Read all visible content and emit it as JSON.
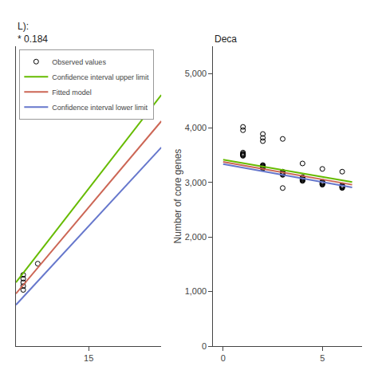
{
  "chart_data": [
    {
      "type": "line",
      "title": "L):\n* 0.184",
      "xlim": [
        10,
        20
      ],
      "ylim": [
        3200,
        4000
      ],
      "xticks": [
        15
      ],
      "yticks": [],
      "tick_labels": "x",
      "grid": false,
      "legend": "upper left",
      "series": [
        {
          "name": "Observed values",
          "type": "scatter",
          "marker": "circle-open",
          "color": "black",
          "x": [
            10.5,
            10.5,
            10.5,
            10.5,
            10.5,
            11.5
          ],
          "values": [
            3350,
            3360,
            3370,
            3380,
            3390,
            3420
          ]
        },
        {
          "name": "Confidence interval upper limit",
          "type": "line",
          "color": "#66bb00",
          "x": [
            10,
            20
          ],
          "values": [
            3370,
            3870
          ]
        },
        {
          "name": "Fitted model",
          "type": "line",
          "color": "#cc6655",
          "x": [
            10,
            20
          ],
          "values": [
            3340,
            3800
          ]
        },
        {
          "name": "Confidence interval lower limit",
          "type": "line",
          "color": "#6677cc",
          "x": [
            10,
            20
          ],
          "values": [
            3310,
            3730
          ]
        }
      ]
    },
    {
      "type": "line",
      "title": "Deca",
      "y_label": "Number of core genes",
      "xlim": [
        -0.5,
        7
      ],
      "ylim": [
        0,
        5500
      ],
      "xticks": [
        0,
        5
      ],
      "yticks": [
        0,
        {
          "value": 1000,
          "label": "1,000"
        },
        {
          "value": 2000,
          "label": "2,000"
        },
        {
          "value": 3000,
          "label": "3,000"
        },
        {
          "value": 4000,
          "label": "4,000"
        },
        {
          "value": 5000,
          "label": "5,000"
        }
      ],
      "grid": false,
      "series": [
        {
          "type": "scatter",
          "marker": "circle-open",
          "color": "black",
          "x": [
            1,
            1,
            1,
            1,
            1,
            1,
            1,
            1,
            2,
            2,
            2,
            2,
            2,
            2,
            2,
            2,
            2,
            2,
            3,
            3,
            3,
            3,
            3,
            3,
            3,
            3,
            3,
            4,
            4,
            4,
            4,
            4,
            4,
            4,
            4,
            4,
            5,
            5,
            5,
            5,
            5,
            5,
            5,
            5,
            6,
            6,
            6,
            6,
            6,
            6,
            6
          ],
          "values": [
            3550,
            3530,
            3520,
            3510,
            3500,
            3490,
            3960,
            4020,
            3320,
            3310,
            3300,
            3290,
            3280,
            3270,
            3260,
            3890,
            3820,
            3760,
            3200,
            3190,
            3180,
            3170,
            3160,
            3150,
            3140,
            3800,
            2900,
            3100,
            3090,
            3080,
            3070,
            3060,
            3050,
            3040,
            3030,
            3350,
            3020,
            3010,
            3000,
            2990,
            2980,
            2970,
            2960,
            3250,
            2950,
            2940,
            2930,
            2920,
            2910,
            2900,
            3200
          ]
        },
        {
          "type": "line",
          "color": "#66bb00",
          "x": [
            0,
            6.5
          ],
          "values": [
            3420,
            3010
          ]
        },
        {
          "type": "line",
          "color": "#cc6655",
          "x": [
            0,
            6.5
          ],
          "values": [
            3380,
            2960
          ]
        },
        {
          "type": "line",
          "color": "#6677cc",
          "x": [
            0,
            6.5
          ],
          "values": [
            3340,
            2910
          ]
        }
      ]
    }
  ]
}
